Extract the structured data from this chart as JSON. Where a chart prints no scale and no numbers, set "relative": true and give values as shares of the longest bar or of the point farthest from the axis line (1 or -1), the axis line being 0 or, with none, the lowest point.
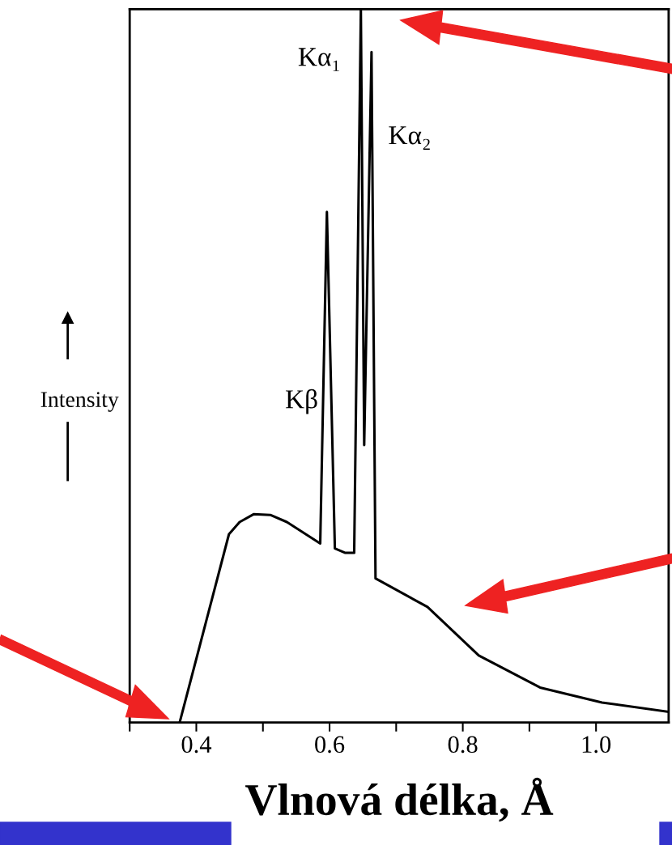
{
  "chart_data": {
    "type": "line",
    "relative": true,
    "xlabel": "Vlnová délka, Å",
    "ylabel": "Intensity",
    "x": [
      0.375,
      0.449,
      0.465,
      0.486,
      0.511,
      0.536,
      0.586,
      0.596,
      0.608,
      0.623,
      0.637,
      0.647,
      0.652,
      0.663,
      0.669,
      0.669,
      0.747,
      0.824,
      0.916,
      1.009,
      1.109
    ],
    "series": [
      {
        "color": "#000000",
        "values": [
          0,
          0.264,
          0.281,
          0.292,
          0.291,
          0.281,
          0.251,
          0.716,
          0.244,
          0.238,
          0.238,
          1.0,
          0.389,
          0.94,
          0.202,
          0.202,
          0.162,
          0.094,
          0.049,
          0.028,
          0.015
        ]
      }
    ],
    "xlim": [
      0.3,
      1.109
    ],
    "xticks": [
      {
        "value": 0.3,
        "label": null
      },
      0.4,
      {
        "value": 0.5,
        "label": null
      },
      0.6,
      {
        "value": 0.7,
        "label": null
      },
      0.8,
      {
        "value": 0.9,
        "label": null
      },
      {
        "value": 1.0,
        "label": "1.0"
      }
    ],
    "tick_labels": "x",
    "grid": false,
    "legend": false,
    "marker": "none",
    "line_style": "solid",
    "annotations": [
      {
        "text": "Kα₁",
        "x": 0.647,
        "y": 1.0
      },
      {
        "text": "Kα₂",
        "x": 0.663,
        "y": 0.94
      },
      {
        "text": "Kβ",
        "x": 0.591,
        "y": 0.45
      }
    ]
  }
}
